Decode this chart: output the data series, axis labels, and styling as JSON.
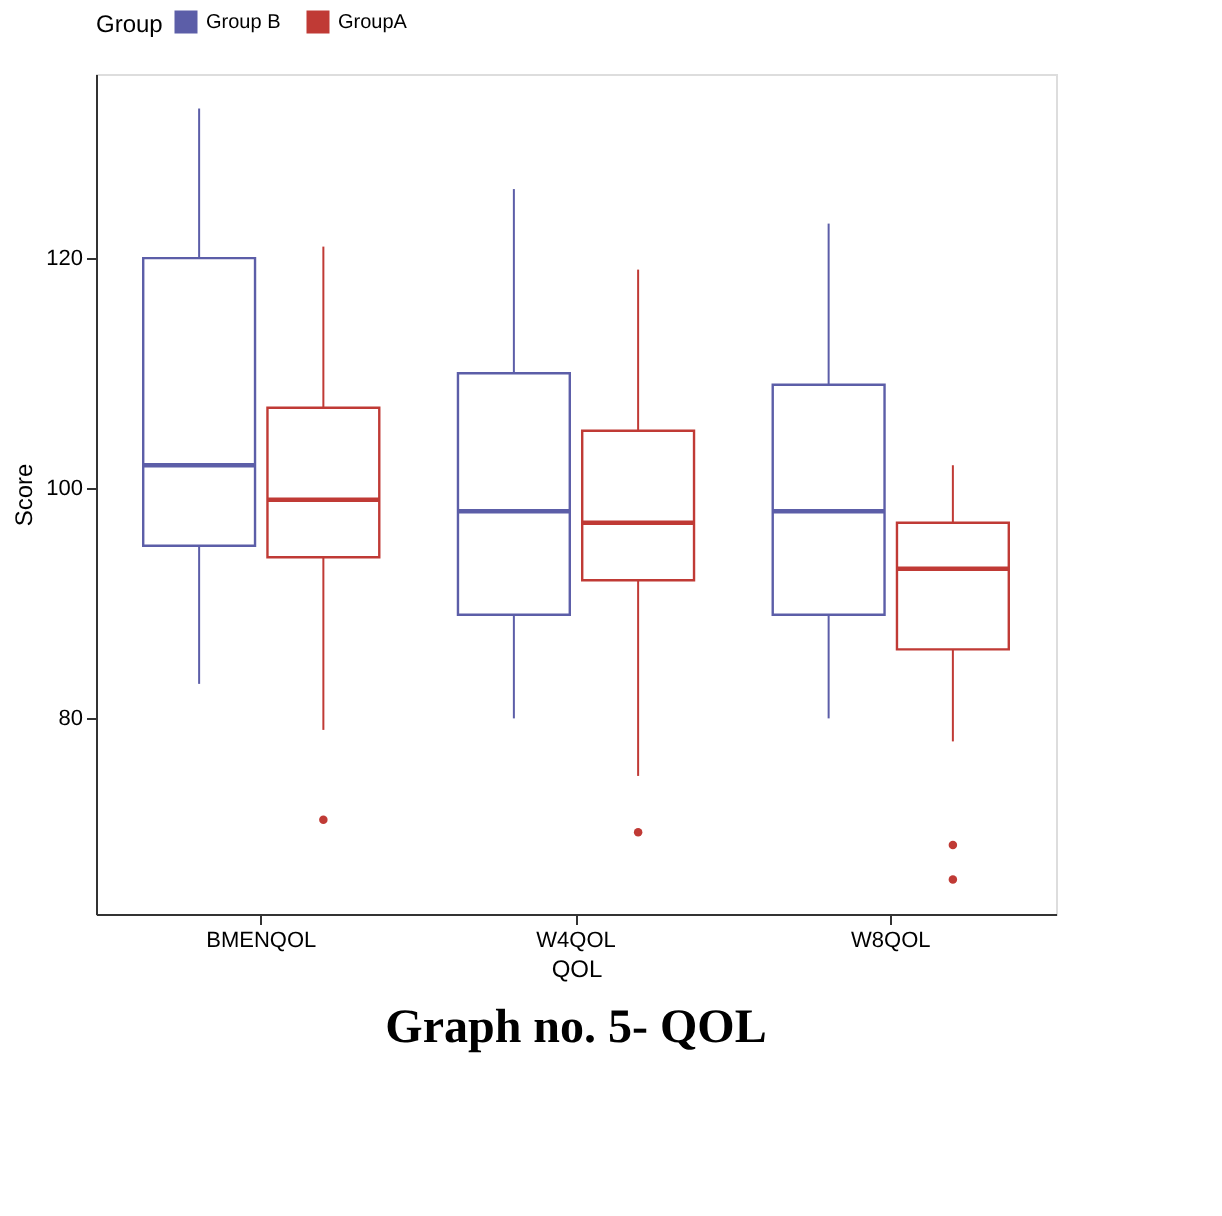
{
  "chart_data": {
    "type": "box",
    "xlabel": "QOL",
    "ylabel": "Score",
    "legend_title": "Group",
    "legend": "top",
    "grid": false,
    "categories": [
      "BMENQOL",
      "W4QOL",
      "W8QOL"
    ],
    "ylim": [
      63,
      136
    ],
    "yticks": [
      80,
      100,
      120
    ],
    "series": [
      {
        "name": "Group B",
        "color": "#5c5ea8",
        "boxes": [
          {
            "low": 83,
            "q1": 95,
            "median": 102,
            "q3": 120,
            "high": 133
          },
          {
            "low": 80,
            "q1": 89,
            "median": 98,
            "q3": 110,
            "high": 126
          },
          {
            "low": 80,
            "q1": 89,
            "median": 98,
            "q3": 109,
            "high": 123
          }
        ]
      },
      {
        "name": "GroupA",
        "color": "#c03a35",
        "boxes": [
          {
            "low": 79,
            "q1": 94,
            "median": 99,
            "q3": 107,
            "high": 121,
            "outliers": [
              71.2
            ]
          },
          {
            "low": 75,
            "q1": 92,
            "median": 97,
            "q3": 105,
            "high": 119,
            "outliers": [
              70.1
            ]
          },
          {
            "low": 78,
            "q1": 86,
            "median": 93,
            "q3": 97,
            "high": 102,
            "outliers": [
              69,
              66
            ]
          }
        ]
      }
    ],
    "annotations": [
      "Graph no. 5- QOL"
    ]
  }
}
